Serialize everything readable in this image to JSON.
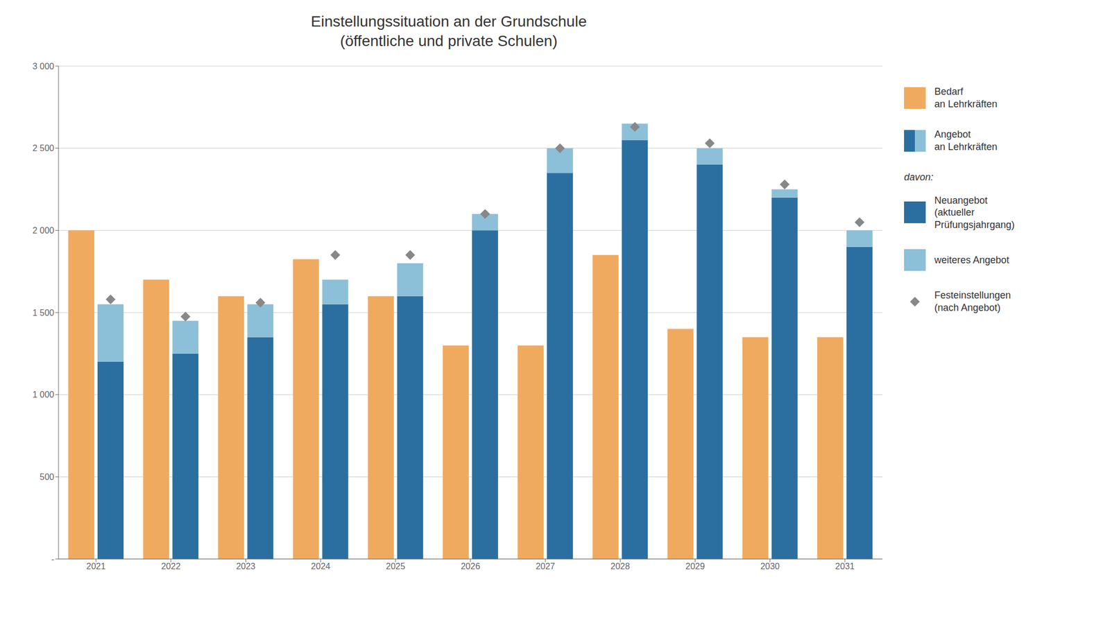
{
  "chart_data": {
    "type": "bar",
    "title": "Einstellungssituation an der Grundschule",
    "subtitle": "(öffentliche und private Schulen)",
    "categories": [
      "2021",
      "2022",
      "2023",
      "2024",
      "2025",
      "2026",
      "2027",
      "2028",
      "2029",
      "2030",
      "2031"
    ],
    "series": [
      {
        "name": "Bedarf\nan Lehrkräften",
        "type": "bar",
        "color": "#F0AA60",
        "values": [
          2000,
          1700,
          1600,
          1825,
          1600,
          1300,
          1300,
          1850,
          1400,
          1350,
          1350
        ]
      },
      {
        "name": "Neuangebot\n(aktueller\nPrüfungsjahrgang)",
        "type": "bar",
        "stacked": true,
        "color": "#2B6FA0",
        "values": [
          1200,
          1250,
          1350,
          1550,
          1600,
          2000,
          2350,
          2550,
          2400,
          2200,
          1900
        ]
      },
      {
        "name": "weiteres Angebot",
        "type": "bar",
        "stacked": true,
        "color": "#8CC0D8",
        "values": [
          350,
          200,
          200,
          150,
          200,
          100,
          150,
          100,
          100,
          50,
          100
        ]
      },
      {
        "name": "Festeinstellungen\n(nach Angebot)",
        "type": "scatter",
        "marker": "diamond",
        "color": "#888888",
        "values": [
          1580,
          1475,
          1560,
          1850,
          1850,
          2100,
          2500,
          2630,
          2530,
          2280,
          2050
        ]
      }
    ],
    "annotations": [
      "Angebot\nan Lehrkräften",
      "davon:"
    ],
    "ylim": [
      0,
      3000
    ],
    "yticks": [
      {
        "value": 0,
        "label": "-"
      },
      500,
      {
        "value": 1000,
        "label": "1 000"
      },
      {
        "value": 1500,
        "label": "1 500"
      },
      {
        "value": 2000,
        "label": "2 000"
      },
      {
        "value": 2500,
        "label": "2 500"
      },
      {
        "value": 3000,
        "label": "3 000"
      }
    ],
    "grid": true,
    "legend": "right"
  }
}
